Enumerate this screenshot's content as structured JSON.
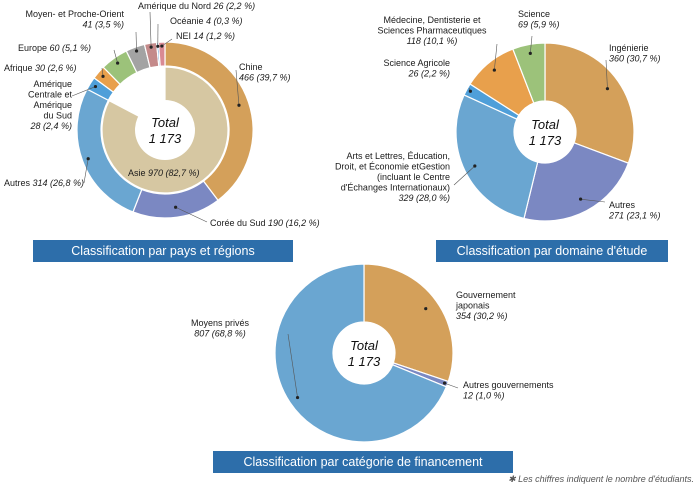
{
  "chart_data": [
    {
      "type": "pie",
      "title": "Classification par pays et régions",
      "center_label": "Total",
      "center_value": "1 173",
      "outer_ring": [
        {
          "name": "Chine",
          "value": 466,
          "value_text": "466 (39,7 %)",
          "color": "#d4a05a"
        },
        {
          "name": "Corée du Sud",
          "value": 190,
          "value_text": "190 (16,2 %)",
          "color": "#7b88c2"
        },
        {
          "name": "Autres",
          "value": 314,
          "value_text": "314 (26,8 %)",
          "color": "#6aa6d1"
        },
        {
          "name": "Amérique Centrale et Amérique du Sud",
          "value": 28,
          "value_text": "28 (2,4 %)",
          "color": "#4f9fd9"
        },
        {
          "name": "Afrique",
          "value": 30,
          "value_text": "30 (2,6 %)",
          "color": "#e8a04c"
        },
        {
          "name": "Europe",
          "value": 60,
          "value_text": "60 (5,1 %)",
          "color": "#9cc27a"
        },
        {
          "name": "Moyen- et Proche-Orient",
          "value": 41,
          "value_text": "41 (3,5 %)",
          "color": "#a3a3a3"
        },
        {
          "name": "Amérique du Nord",
          "value": 26,
          "value_text": "26 (2,2 %)",
          "color": "#c48a8a"
        },
        {
          "name": "Océanie",
          "value": 4,
          "value_text": "4 (0,3 %)",
          "color": "#4a8fd0"
        },
        {
          "name": "NEI",
          "value": 14,
          "value_text": "14 (1,2 %)",
          "color": "#d98a94"
        }
      ],
      "inner_ring": [
        {
          "name": "Asie",
          "value": 970,
          "value_text": "970 (82,7 %)",
          "color": "#d6c7a2"
        }
      ]
    },
    {
      "type": "pie",
      "title": "Classification par domaine d'étude",
      "center_label": "Total",
      "center_value": "1 173",
      "slices": [
        {
          "name": "Ingénierie",
          "value": 360,
          "value_text": "360 (30,7 %)",
          "color": "#d4a05a"
        },
        {
          "name": "Autres",
          "value": 271,
          "value_text": "271 (23,1 %)",
          "color": "#7b88c2"
        },
        {
          "name": "Arts et Lettres, Éducation, Droit, et Économie etGestion (incluant le Centre d'Échanges Internationaux)",
          "value": 329,
          "value_text": "329 (28,0 %)",
          "color": "#6aa6d1"
        },
        {
          "name": "Science Agricole",
          "value": 26,
          "value_text": "26 (2,2 %)",
          "color": "#4f9fd9"
        },
        {
          "name": "Médecine, Dentisterie et Sciences Pharmaceutiques",
          "value": 118,
          "value_text": "118 (10,1 %)",
          "color": "#e8a04c"
        },
        {
          "name": "Science",
          "value": 69,
          "value_text": "69 (5,9 %)",
          "color": "#9cc27a"
        }
      ]
    },
    {
      "type": "pie",
      "title": "Classification par catégorie de financement",
      "center_label": "Total",
      "center_value": "1 173",
      "slices": [
        {
          "name": "Gouvernement japonais",
          "value": 354,
          "value_text": "354 (30,2 %)",
          "color": "#d4a05a"
        },
        {
          "name": "Autres gouvernements",
          "value": 12,
          "value_text": "12 (1,0 %)",
          "color": "#7b88c2"
        },
        {
          "name": "Moyens privés",
          "value": 807,
          "value_text": "807 (68,8 %)",
          "color": "#6aa6d1"
        }
      ]
    }
  ],
  "footnote": "✱ Les chiffres indiquent le nombre d'étudiants."
}
